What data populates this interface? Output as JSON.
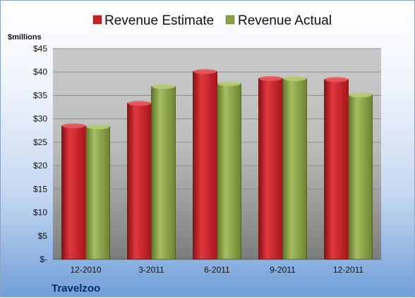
{
  "chart_data": {
    "type": "bar",
    "title": "",
    "unit_label": "$millions",
    "company": "Travelzoo",
    "categories": [
      "12-2010",
      "3-2011",
      "6-2011",
      "9-2011",
      "12-2011"
    ],
    "series": [
      {
        "name": "Revenue Estimate",
        "values": [
          28.5,
          33.3,
          40.1,
          38.6,
          38.4
        ],
        "color": "#c62127"
      },
      {
        "name": "Revenue Actual",
        "values": [
          28.3,
          36.9,
          37.5,
          38.6,
          35.1
        ],
        "color": "#8aa048"
      }
    ],
    "ylim": [
      0,
      45
    ],
    "y_ticks": [
      {
        "value": 0,
        "label": "$-"
      },
      {
        "value": 5,
        "label": "$5"
      },
      {
        "value": 10,
        "label": "$10"
      },
      {
        "value": 15,
        "label": "$15"
      },
      {
        "value": 20,
        "label": "$20"
      },
      {
        "value": 25,
        "label": "$25"
      },
      {
        "value": 30,
        "label": "$30"
      },
      {
        "value": 35,
        "label": "$35"
      },
      {
        "value": 40,
        "label": "$40"
      },
      {
        "value": 45,
        "label": "$45"
      }
    ],
    "grid": true,
    "legend_position": "top"
  }
}
